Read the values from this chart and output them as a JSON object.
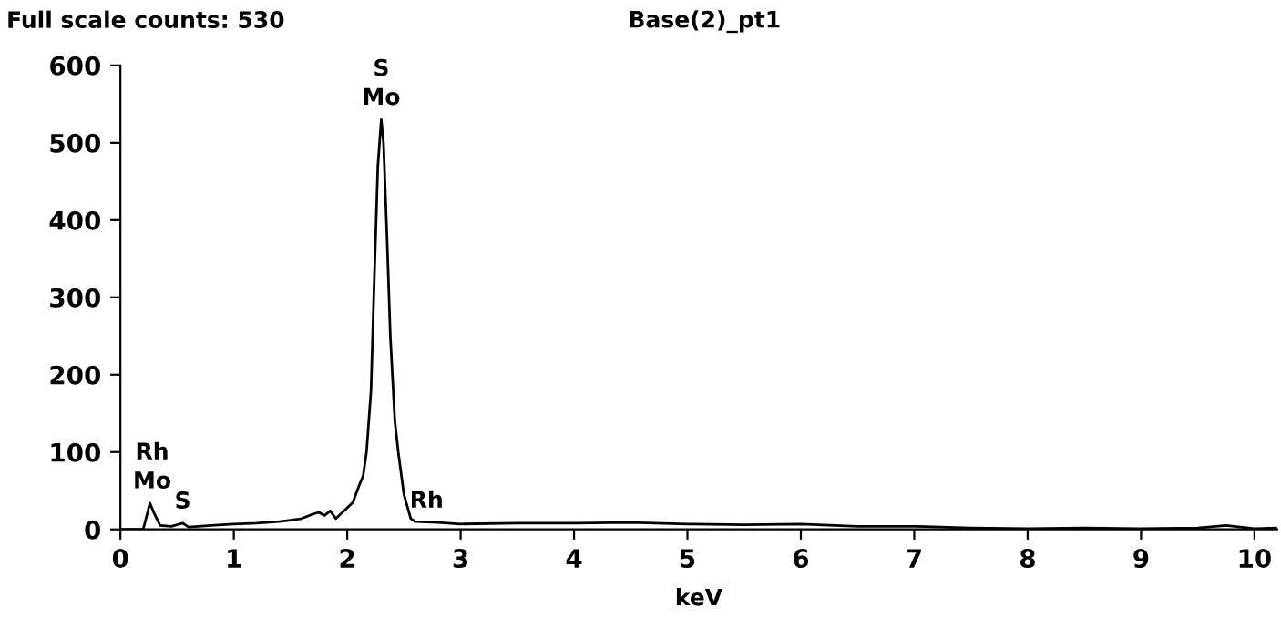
{
  "chart_data": {
    "type": "line",
    "title": "Base(2)_pt1",
    "xlabel": "keV",
    "annotations": [
      "Full scale counts: 530",
      {
        "text": "Rh\nMo",
        "x": 0.28,
        "y": 34
      },
      {
        "text": "S",
        "x": 0.55,
        "y": 8
      },
      {
        "text": "S\nMo",
        "x": 2.3,
        "y": 530
      },
      {
        "text": "Rh",
        "x": 2.7,
        "y": 9
      }
    ],
    "x": [
      0,
      0.2,
      0.21,
      0.26,
      0.3,
      0.35,
      0.45,
      0.55,
      0.6,
      0.8,
      1.0,
      1.2,
      1.4,
      1.5,
      1.6,
      1.7,
      1.75,
      1.8,
      1.85,
      1.9,
      2.0,
      2.05,
      2.1,
      2.14,
      2.17,
      2.21,
      2.24,
      2.27,
      2.3,
      2.32,
      2.35,
      2.38,
      2.42,
      2.45,
      2.5,
      2.56,
      2.6,
      2.8,
      3.0,
      3.5,
      4.0,
      4.5,
      5.0,
      5.5,
      6.0,
      6.5,
      7.0,
      7.5,
      8.0,
      8.5,
      9.0,
      9.5,
      9.75,
      10.0,
      10.2
    ],
    "series": [
      {
        "color": "#000000",
        "values": [
          0,
          0,
          5,
          34,
          20,
          5,
          4,
          8,
          3,
          5,
          7,
          8,
          10,
          12,
          14,
          20,
          22,
          18,
          24,
          14,
          28,
          35,
          55,
          69,
          100,
          180,
          330,
          470,
          530,
          500,
          380,
          250,
          140,
          100,
          45,
          14,
          10,
          9,
          7,
          8,
          8,
          9,
          7,
          6,
          7,
          4,
          4,
          2,
          1,
          2,
          1,
          2,
          5,
          1,
          2
        ]
      }
    ],
    "xlim": [
      0,
      10.2
    ],
    "ylim": [
      0,
      600
    ],
    "xticks": [
      0,
      1,
      2,
      3,
      4,
      5,
      6,
      7,
      8,
      9,
      10
    ],
    "yticks": [
      0,
      100,
      200,
      300,
      400,
      500,
      600
    ],
    "grid": false,
    "legend": false,
    "marker": "none",
    "line_style": "solid"
  }
}
